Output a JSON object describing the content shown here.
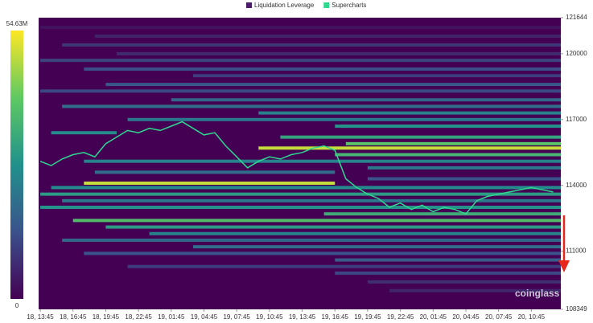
{
  "chart_data": {
    "type": "heatmap",
    "series": [
      {
        "name": "Liquidation Leverage",
        "color": "#4b1d6b",
        "bands": [
          {
            "price": 121200,
            "start": 0,
            "end": 47.7,
            "value": 3
          },
          {
            "price": 120800,
            "start": 5,
            "end": 47.7,
            "value": 6
          },
          {
            "price": 120400,
            "start": 2,
            "end": 47.7,
            "value": 9
          },
          {
            "price": 120000,
            "start": 7,
            "end": 47.7,
            "value": 7
          },
          {
            "price": 119700,
            "start": 0,
            "end": 47.7,
            "value": 11
          },
          {
            "price": 119300,
            "start": 4,
            "end": 47.7,
            "value": 13
          },
          {
            "price": 119000,
            "start": 14,
            "end": 47.7,
            "value": 10
          },
          {
            "price": 118600,
            "start": 6,
            "end": 47.7,
            "value": 15
          },
          {
            "price": 118300,
            "start": 0,
            "end": 47.7,
            "value": 12
          },
          {
            "price": 117900,
            "start": 12,
            "end": 47.7,
            "value": 18
          },
          {
            "price": 117600,
            "start": 2,
            "end": 47.7,
            "value": 20
          },
          {
            "price": 117300,
            "start": 20,
            "end": 47.7,
            "value": 24
          },
          {
            "price": 117000,
            "start": 8,
            "end": 47.7,
            "value": 22
          },
          {
            "price": 116700,
            "start": 27,
            "end": 47.7,
            "value": 28
          },
          {
            "price": 116400,
            "start": 1,
            "end": 7,
            "value": 26
          },
          {
            "price": 116200,
            "start": 22,
            "end": 47.7,
            "value": 32
          },
          {
            "price": 115900,
            "start": 28,
            "end": 47.7,
            "value": 40
          },
          {
            "price": 115700,
            "start": 20,
            "end": 47.7,
            "value": 50
          },
          {
            "price": 115400,
            "start": 27,
            "end": 47.7,
            "value": 36
          },
          {
            "price": 115100,
            "start": 4,
            "end": 47.7,
            "value": 24
          },
          {
            "price": 114800,
            "start": 30,
            "end": 47.7,
            "value": 22
          },
          {
            "price": 114600,
            "start": 5,
            "end": 27,
            "value": 20
          },
          {
            "price": 114300,
            "start": 30,
            "end": 47.7,
            "value": 14
          },
          {
            "price": 114100,
            "start": 4,
            "end": 27,
            "value": 50
          },
          {
            "price": 113900,
            "start": 1,
            "end": 47.7,
            "value": 26
          },
          {
            "price": 113600,
            "start": 0,
            "end": 47.7,
            "value": 30
          },
          {
            "price": 113300,
            "start": 2,
            "end": 47.7,
            "value": 22
          },
          {
            "price": 113000,
            "start": 0,
            "end": 47.7,
            "value": 28
          },
          {
            "price": 112700,
            "start": 26,
            "end": 47.7,
            "value": 34
          },
          {
            "price": 112400,
            "start": 3,
            "end": 47.7,
            "value": 38
          },
          {
            "price": 112100,
            "start": 6,
            "end": 47.7,
            "value": 30
          },
          {
            "price": 111800,
            "start": 10,
            "end": 47.7,
            "value": 24
          },
          {
            "price": 111500,
            "start": 2,
            "end": 47.7,
            "value": 18
          },
          {
            "price": 111200,
            "start": 14,
            "end": 47.7,
            "value": 20
          },
          {
            "price": 110900,
            "start": 4,
            "end": 47.7,
            "value": 14
          },
          {
            "price": 110600,
            "start": 27,
            "end": 47.7,
            "value": 16
          },
          {
            "price": 110300,
            "start": 8,
            "end": 47.7,
            "value": 10
          },
          {
            "price": 110000,
            "start": 27,
            "end": 47.7,
            "value": 12
          },
          {
            "price": 109600,
            "start": 30,
            "end": 47.7,
            "value": 8
          },
          {
            "price": 109200,
            "start": 32,
            "end": 47.7,
            "value": 6
          }
        ]
      },
      {
        "name": "Supercharts",
        "color": "#2fd88f",
        "x": [
          0,
          1,
          2,
          3,
          4,
          5,
          6,
          7,
          8,
          9,
          10,
          11,
          12,
          13,
          14,
          15,
          16,
          17,
          18,
          19,
          20,
          21,
          22,
          23,
          24,
          25,
          26,
          27,
          28,
          29,
          30,
          31,
          32,
          33,
          34,
          35,
          36,
          37,
          38,
          39,
          40,
          41,
          42,
          43,
          44,
          45,
          46,
          47
        ],
        "values": [
          115100,
          114900,
          115200,
          115400,
          115500,
          115300,
          115900,
          116200,
          116500,
          116400,
          116600,
          116500,
          116700,
          116900,
          116600,
          116300,
          116400,
          115800,
          115300,
          114800,
          115100,
          115300,
          115200,
          115400,
          115500,
          115700,
          115800,
          115600,
          114300,
          113900,
          113600,
          113400,
          113000,
          113200,
          112900,
          113100,
          112800,
          113000,
          112900,
          112700,
          113300,
          113500,
          113600,
          113700,
          113800,
          113900,
          113800,
          113700
        ]
      }
    ],
    "colormap": [
      "#440154",
      "#3b528b",
      "#21918c",
      "#5ec962",
      "#fde725"
    ],
    "clim": [
      0,
      54.63
    ],
    "cticks": [
      0,
      {
        "value": 54.63,
        "label": "54.63M"
      }
    ],
    "ylim": [
      108349,
      121644
    ],
    "yticks": [
      108349,
      111000,
      114000,
      117000,
      120000,
      121644
    ],
    "xlim": [
      -0.15,
      47.7
    ],
    "xticks": [
      {
        "value": 0,
        "label": "18, 13:45"
      },
      {
        "value": 3,
        "label": "18, 16:45"
      },
      {
        "value": 6,
        "label": "18, 19:45"
      },
      {
        "value": 9,
        "label": "18, 22:45"
      },
      {
        "value": 12,
        "label": "19, 01:45"
      },
      {
        "value": 15,
        "label": "19, 04:45"
      },
      {
        "value": 18,
        "label": "19, 07:45"
      },
      {
        "value": 21,
        "label": "19, 10:45"
      },
      {
        "value": 24,
        "label": "19, 13:45"
      },
      {
        "value": 27,
        "label": "19, 16:45"
      },
      {
        "value": 30,
        "label": "19, 19:45"
      },
      {
        "value": 33,
        "label": "19, 22:45"
      },
      {
        "value": 36,
        "label": "20, 01:45"
      },
      {
        "value": 39,
        "label": "20, 04:45"
      },
      {
        "value": 42,
        "label": "20, 07:45"
      },
      {
        "value": 45,
        "label": "20, 10:45"
      }
    ],
    "watermark": "coinglass"
  }
}
